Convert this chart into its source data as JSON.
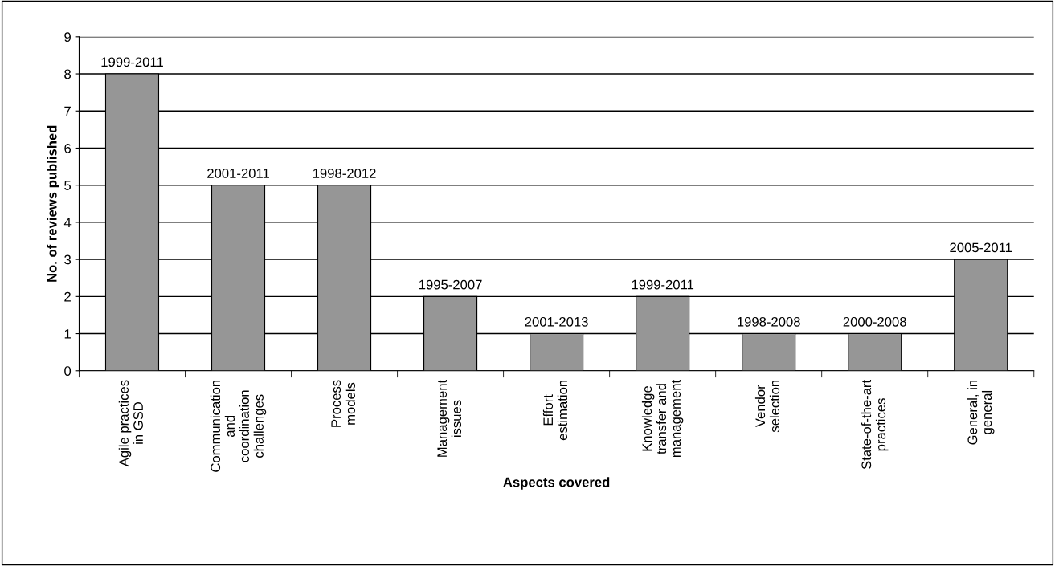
{
  "chart_data": {
    "type": "bar",
    "xlabel": "Aspects covered",
    "ylabel": "No. of reviews published",
    "categories": [
      "Agile practices\nin GSD",
      "Communication\nand\ncoordination\nchallenges",
      "Process\nmodels",
      "Management\nissues",
      "Effort\nestimation",
      "Knowledge\ntransfer and\nmanagement",
      "Vendor\nselection",
      "State-of-the-art\npractices",
      "General, in\ngeneral"
    ],
    "values": [
      8,
      5,
      5,
      2,
      1,
      2,
      1,
      1,
      3
    ],
    "value_labels": [
      "1999-2011",
      "2001-2011",
      "1998-2012",
      "1995-2007",
      "2001-2013",
      "1999-2011",
      "1998-2008",
      "2000-2008",
      "2005-2011"
    ],
    "color": "#969696",
    "ylim": [
      0,
      9
    ],
    "yticks": [
      0,
      1,
      2,
      3,
      4,
      5,
      6,
      7,
      8,
      9
    ],
    "grid": "y"
  }
}
